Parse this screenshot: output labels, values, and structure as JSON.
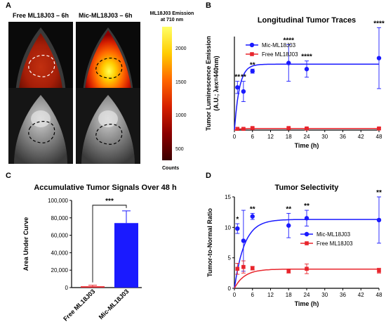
{
  "panel_letters": {
    "a": "A",
    "b": "B",
    "c": "C",
    "d": "D"
  },
  "panel_a": {
    "titles": [
      "Free ML18J03 – 6h",
      "Mic-ML18J03 – 6h"
    ],
    "colorbar": {
      "title_line1": "ML18J03 Emission",
      "title_line2": "at 710 nm",
      "ticks": [
        "2000",
        "1500",
        "1000",
        "500"
      ],
      "tick_values": [
        2000,
        1500,
        1000,
        500
      ],
      "range": [
        350,
        2350
      ],
      "unit": "Counts",
      "colors": [
        "#ffff66",
        "#ffcc00",
        "#ff6600",
        "#d62000",
        "#8b0000",
        "#3d0000"
      ]
    }
  },
  "chart_data": [
    {
      "type": "line",
      "panel": "B",
      "title": "Longitudinal Tumor Traces",
      "xlabel": "Time (h)",
      "ylabel_line1": "Tumor Luminescence Emission",
      "ylabel_line2": "(A.U.; λex=440nm)",
      "xlim": [
        0,
        48
      ],
      "xticks": [
        "0",
        "6",
        "12",
        "18",
        "24",
        "30",
        "36",
        "42",
        "48"
      ],
      "ylim": [
        0,
        2.3
      ],
      "legend_loc": "upper-left",
      "series": [
        {
          "name": "Mic-ML18J03",
          "color": "#1a1aff",
          "x": [
            1,
            3,
            6,
            18,
            24,
            48
          ],
          "y": [
            1.05,
            0.95,
            1.45,
            1.65,
            1.5,
            1.77
          ],
          "err": [
            0.15,
            0.25,
            0.05,
            0.45,
            0.2,
            0.75
          ],
          "sig": [
            "**",
            "**",
            "**",
            "****",
            "****",
            "****"
          ],
          "fit_plateau": 1.62,
          "fit_rate": 0.6
        },
        {
          "name": "Free ML18J03",
          "color": "#e8252c",
          "x": [
            1,
            3,
            6,
            18,
            24,
            48
          ],
          "y": [
            0.03,
            0.03,
            0.05,
            0.05,
            0.04,
            0.04
          ],
          "err": [
            0.02,
            0.02,
            0.02,
            0.02,
            0.02,
            0.02
          ],
          "sig": [
            "",
            "",
            "",
            "",
            "",
            ""
          ],
          "fit_plateau": 0.04,
          "fit_rate": 0.6
        }
      ]
    },
    {
      "type": "bar",
      "panel": "C",
      "title": "Accumulative Tumor Signals Over 48 h",
      "ylabel": "Area Under Curve",
      "ylim": [
        0,
        100000
      ],
      "yticks": [
        "0",
        "20,000",
        "40,000",
        "60,000",
        "80,000",
        "100,000"
      ],
      "categories": [
        "Free ML18J03",
        "Mic-ML18J03"
      ],
      "values": [
        1500,
        74000
      ],
      "errors": [
        1200,
        14000
      ],
      "colors": [
        "#e8252c",
        "#1a1aff"
      ],
      "significance": "***"
    },
    {
      "type": "line",
      "panel": "D",
      "title": "Tumor Selectivity",
      "xlabel": "Time (h)",
      "ylabel": "Tumor-to-Normal Ratio",
      "xlim": [
        0,
        48
      ],
      "xticks": [
        "0",
        "6",
        "12",
        "18",
        "24",
        "30",
        "36",
        "42",
        "48"
      ],
      "ylim": [
        0,
        15
      ],
      "yticks": [
        "0",
        "5",
        "10",
        "15"
      ],
      "legend_loc": "center-right",
      "series": [
        {
          "name": "Mic-ML18J03",
          "color": "#1a1aff",
          "x": [
            1,
            3,
            6,
            18,
            24,
            48
          ],
          "y": [
            9.8,
            7.8,
            11.8,
            10.3,
            11.5,
            11.2
          ],
          "err": [
            0.8,
            5.0,
            0.5,
            2.0,
            1.3,
            3.8
          ],
          "sig": [
            "*",
            "",
            "**",
            "**",
            "**",
            "**"
          ],
          "fit_plateau": 11.3,
          "fit_rate": 0.3
        },
        {
          "name": "Free ML18J03",
          "color": "#e8252c",
          "x": [
            1,
            3,
            6,
            18,
            24,
            48
          ],
          "y": [
            3.2,
            3.5,
            3.3,
            2.8,
            3.2,
            2.9
          ],
          "err": [
            0.9,
            1.0,
            0.3,
            0.3,
            0.8,
            0.4
          ],
          "sig": [
            "",
            "",
            "",
            "",
            "",
            ""
          ],
          "fit_plateau": 3.15,
          "fit_rate": 0.3
        }
      ]
    }
  ]
}
